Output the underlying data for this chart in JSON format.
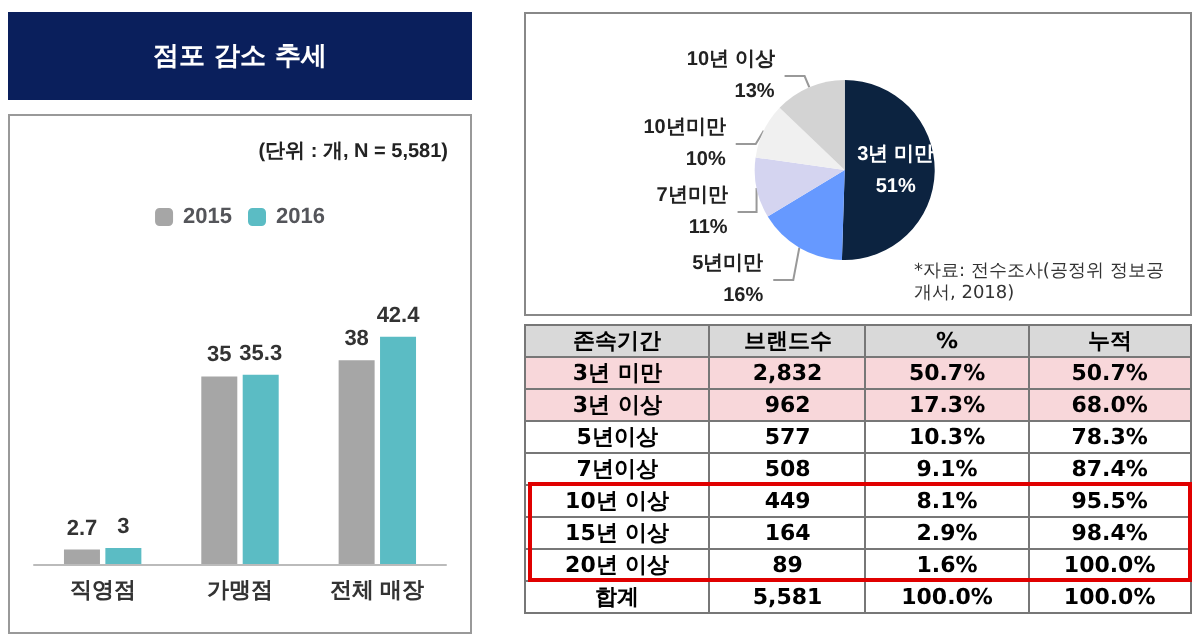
{
  "chart_data": [
    {
      "type": "bar",
      "title": "점포 감소 추세",
      "subtitle": "(단위 : 개, N = 5,581)",
      "categories": [
        "직영점",
        "가맹점",
        "전체 매장"
      ],
      "series": [
        {
          "name": "2015",
          "color": "#a6a6a6",
          "values": [
            2.7,
            35,
            38
          ]
        },
        {
          "name": "2016",
          "color": "#5bbcc4",
          "values": [
            3,
            35.3,
            42.4
          ]
        }
      ],
      "data_labels": true,
      "legend": "top",
      "grid": false
    },
    {
      "type": "pie",
      "categories": [
        "3년 미만",
        "5년미만",
        "7년미만",
        "10년미만",
        "10년 이상"
      ],
      "values": [
        51,
        16,
        11,
        10,
        13
      ],
      "value_labels": [
        "51%",
        "16%",
        "11%",
        "10%",
        "13%"
      ],
      "colors": [
        "#0c2340",
        "#6699ff",
        "#d4d4f0",
        "#f0f0f0",
        "#d3d3d3"
      ],
      "annotations": [
        "*자료: 전수조사(공정위 정보공개서, 2018)"
      ]
    },
    {
      "type": "other",
      "categories": [
        "존속기간",
        "브랜드수",
        "%",
        "누적"
      ],
      "annotations": [
        "3년 미만",
        "2,832",
        "50.7%",
        "50.7%",
        "3년 이상",
        "962",
        "17.3%",
        "68.0%",
        "5년이상",
        "577",
        "10.3%",
        "78.3%",
        "7년이상",
        "508",
        "9.1%",
        "87.4%",
        "10년 이상",
        "449",
        "8.1%",
        "95.5%",
        "15년 이상",
        "164",
        "2.9%",
        "98.4%",
        "20년 이상",
        "89",
        "1.6%",
        "100.0%",
        "합계",
        "5,581",
        "100.0%",
        "100.0%"
      ]
    }
  ]
}
